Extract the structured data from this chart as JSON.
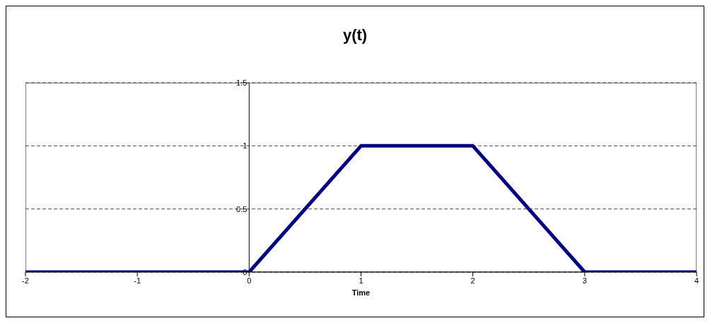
{
  "chart_data": {
    "type": "line",
    "title": "y(t)",
    "xlabel": "Time",
    "x": [
      -2,
      0,
      1,
      2,
      3,
      4
    ],
    "series": [
      {
        "color": "#000080",
        "values": [
          0,
          0,
          1,
          1,
          0,
          0
        ]
      }
    ],
    "xlim": [
      -2,
      4
    ],
    "xticks": [
      -2,
      -1,
      0,
      1,
      2,
      3,
      4
    ],
    "ylim": [
      0,
      1.5
    ],
    "yticks": [
      0,
      0.5,
      1,
      1.5
    ],
    "grid": "y",
    "marker": "none",
    "line_style": "solid"
  }
}
